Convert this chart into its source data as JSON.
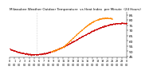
{
  "title": "Milwaukee Weather Outdoor Temperature  vs Heat Index  per Minute  (24 Hours)",
  "bg_color": "#ffffff",
  "red_color": "#cc0000",
  "orange_color": "#ff8800",
  "y_min": 44,
  "y_max": 88,
  "yticks": [
    45,
    50,
    55,
    60,
    65,
    70,
    75,
    80,
    85
  ],
  "ytick_labels": [
    "45",
    "50",
    "55",
    "60",
    "65",
    "70",
    "75",
    "80",
    "85"
  ],
  "vline_x": 5.5,
  "title_fontsize": 3.0,
  "tick_fontsize": 3.2,
  "x_min": 0,
  "x_max": 24
}
